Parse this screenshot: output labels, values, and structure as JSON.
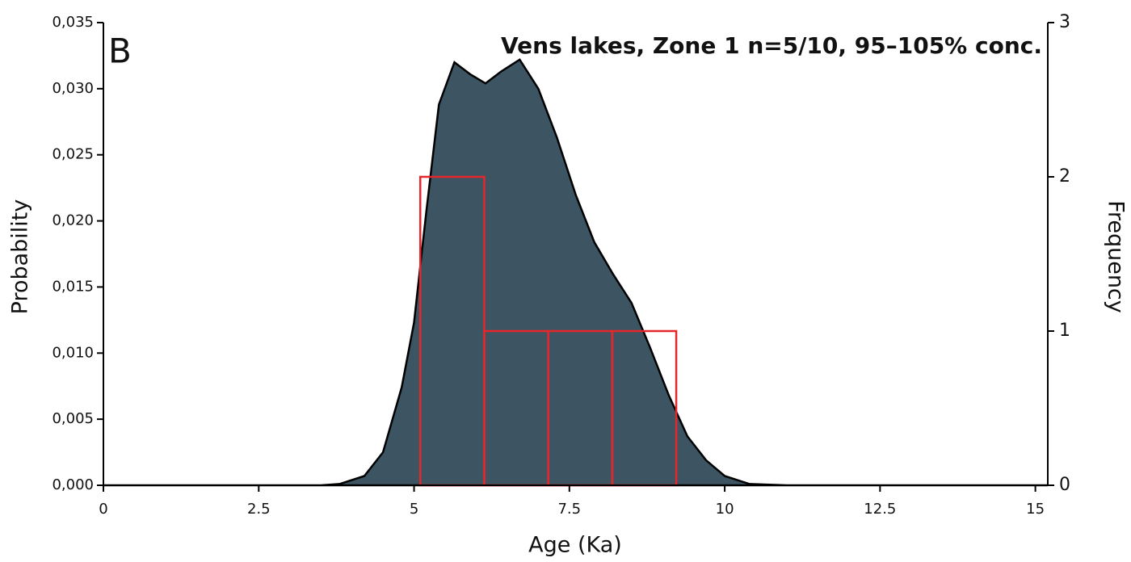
{
  "chart_data": {
    "type": "area",
    "title": "Vens lakes, Zone 1 n=5/10, 95–105% conc.",
    "annotation": "B",
    "xlabel": "Age (Ka)",
    "ylabel": "Probability",
    "y2label": "Frequency",
    "x": [
      0,
      3.5,
      3.8,
      4.2,
      4.5,
      4.8,
      5.0,
      5.2,
      5.4,
      5.65,
      5.9,
      6.15,
      6.4,
      6.7,
      7.0,
      7.3,
      7.6,
      7.9,
      8.2,
      8.5,
      8.8,
      9.1,
      9.4,
      9.7,
      10.0,
      10.4,
      11,
      15.2
    ],
    "values": [
      0,
      0,
      0.0001,
      0.0007,
      0.0025,
      0.0074,
      0.0123,
      0.0208,
      0.0288,
      0.032,
      0.0311,
      0.0304,
      0.0313,
      0.0322,
      0.03,
      0.0263,
      0.022,
      0.0184,
      0.016,
      0.0138,
      0.0104,
      0.0068,
      0.0037,
      0.0019,
      0.0007,
      0.0001,
      0,
      0
    ],
    "color": "#3d5563",
    "histogram": {
      "bins": [
        5.1,
        6.13,
        7.16,
        8.19,
        9.22
      ],
      "counts": [
        2,
        1,
        1,
        1
      ],
      "color": "#e5262b",
      "axis": "y2"
    },
    "xlim": [
      0,
      15.2
    ],
    "xticks": [
      0,
      2.5,
      5,
      7.5,
      10,
      12.5,
      15
    ],
    "ylim": [
      0,
      0.035
    ],
    "yticks": [
      {
        "value": 0,
        "label": "0,000"
      },
      {
        "value": 0.005,
        "label": "0,005"
      },
      {
        "value": 0.01,
        "label": "0,010"
      },
      {
        "value": 0.015,
        "label": "0,015"
      },
      {
        "value": 0.02,
        "label": "0,020"
      },
      {
        "value": 0.025,
        "label": "0,025"
      },
      {
        "value": 0.03,
        "label": "0,030"
      },
      {
        "value": 0.035,
        "label": "0,035"
      }
    ],
    "y2lim": [
      0,
      3
    ],
    "y2ticks": [
      0,
      1,
      2,
      3
    ],
    "grid": false
  }
}
